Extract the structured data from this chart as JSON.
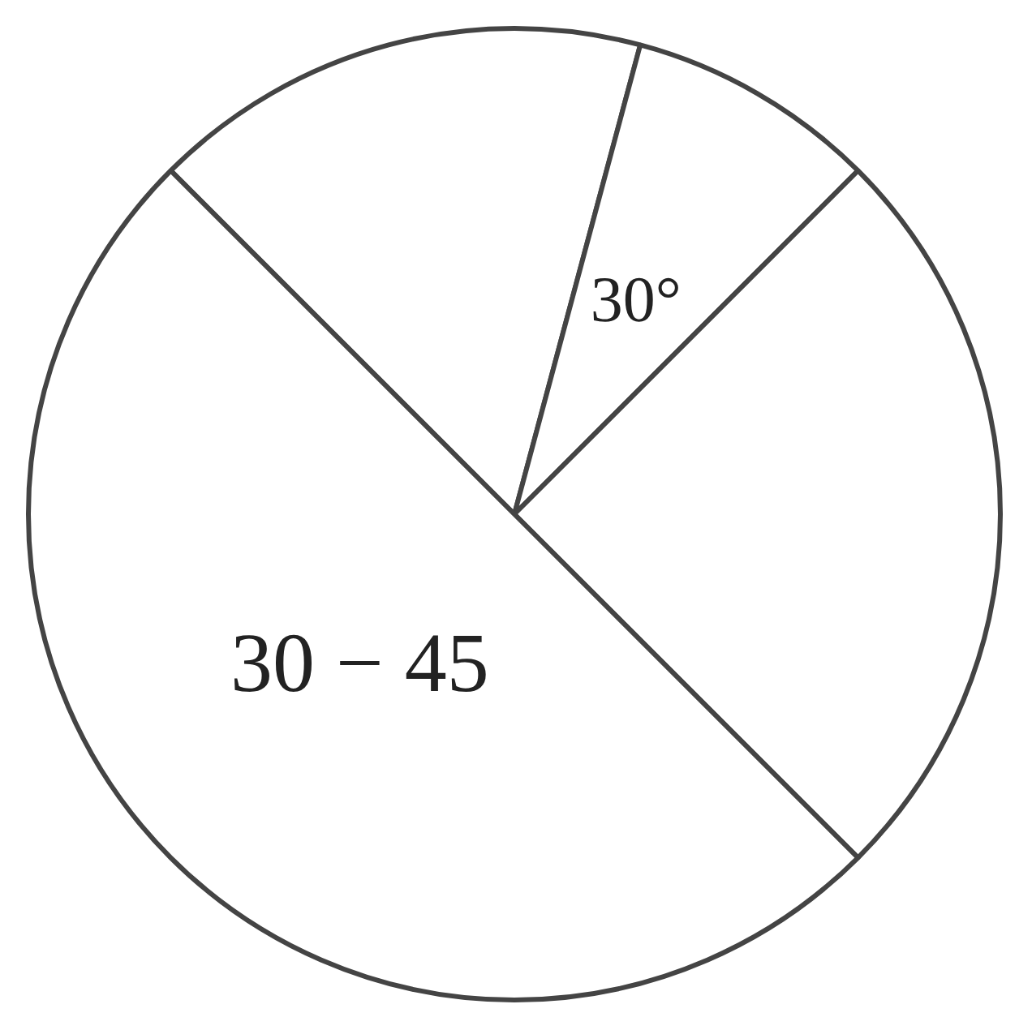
{
  "chart_data": {
    "type": "pie",
    "categories": [
      null,
      null,
      null,
      "30 − 45"
    ],
    "values": [
      16.67,
      8.33,
      25,
      50
    ],
    "colors": [
      "#ffffff",
      "#ffffff",
      "#ffffff",
      "#ffffff"
    ],
    "annotations": [
      "30°"
    ],
    "legend": false
  }
}
